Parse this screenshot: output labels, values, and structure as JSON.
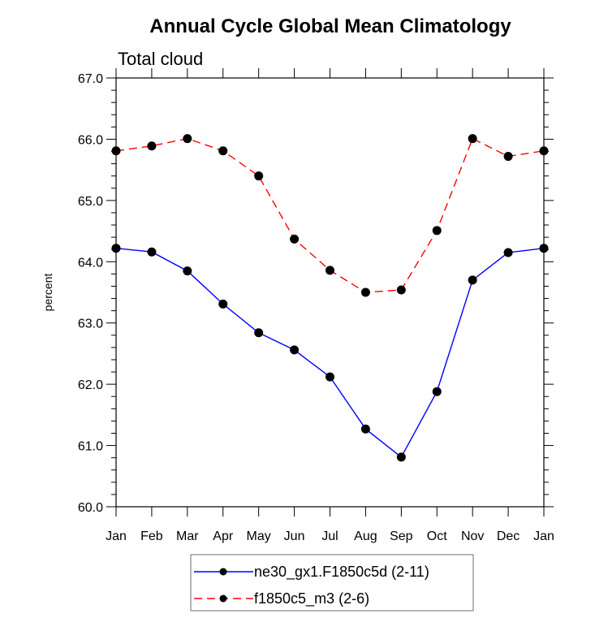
{
  "chart_data": {
    "type": "line",
    "title": "Annual Cycle Global Mean Climatology",
    "subtitle": "Total cloud",
    "xlabel": "",
    "ylabel": "percent",
    "categories": [
      "Jan",
      "Feb",
      "Mar",
      "Apr",
      "May",
      "Jun",
      "Jul",
      "Aug",
      "Sep",
      "Oct",
      "Nov",
      "Dec",
      "Jan"
    ],
    "ylim": [
      60.0,
      67.0
    ],
    "yticks": [
      "60.0",
      "61.0",
      "62.0",
      "63.0",
      "64.0",
      "65.0",
      "66.0",
      "67.0"
    ],
    "y_minor_per_major": 4,
    "grid": false,
    "legend_position": "bottom-center",
    "series": [
      {
        "name": "ne30_gx1.F1850c5d (2-11)",
        "color": "#0000ff",
        "line_style": "solid",
        "marker": "filled-circle",
        "marker_color": "#000000",
        "values": [
          64.22,
          64.16,
          63.85,
          63.31,
          62.84,
          62.56,
          62.12,
          61.27,
          60.81,
          61.88,
          63.7,
          64.15,
          64.22
        ]
      },
      {
        "name": "f1850c5_m3 (2-6)",
        "color": "#ff0000",
        "line_style": "dashed",
        "marker": "filled-circle",
        "marker_color": "#000000",
        "values": [
          65.81,
          65.89,
          66.01,
          65.81,
          65.4,
          64.37,
          63.86,
          63.5,
          63.54,
          64.51,
          66.01,
          65.72,
          65.81
        ]
      }
    ]
  }
}
